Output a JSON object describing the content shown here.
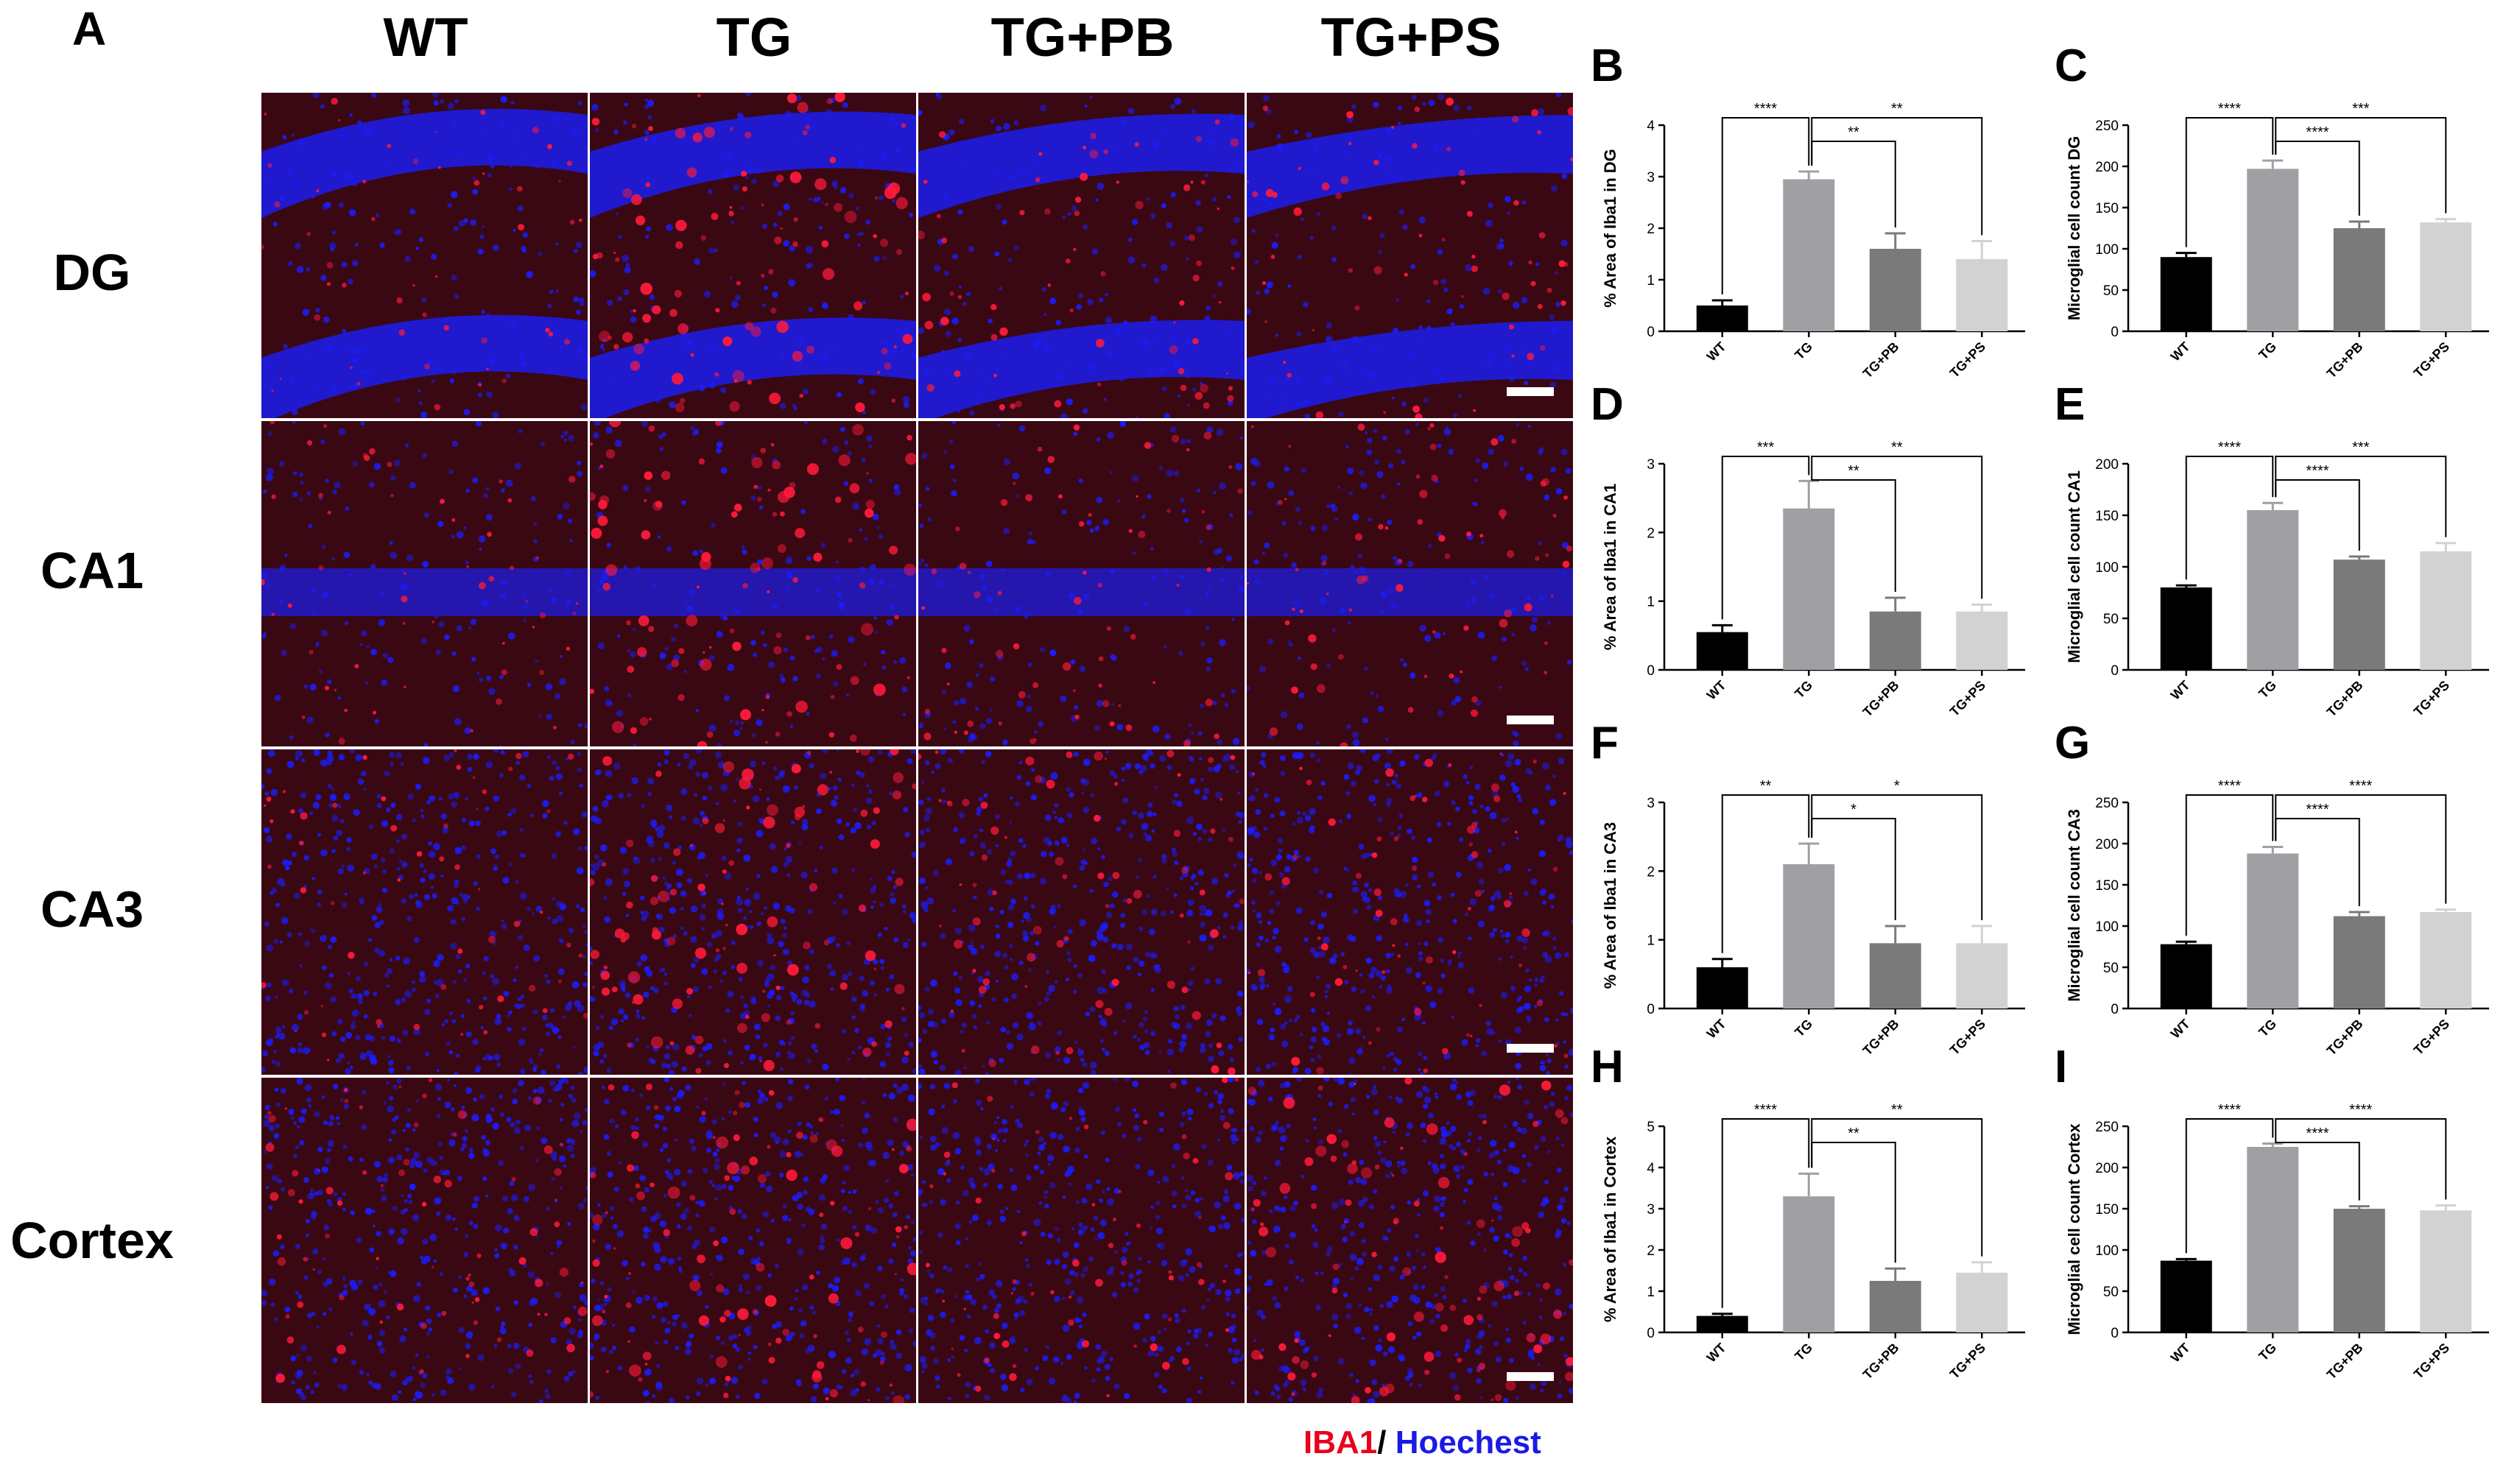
{
  "figure": {
    "panel_a_letter": "A",
    "columns": [
      "WT",
      "TG",
      "TG+PB",
      "TG+PS"
    ],
    "rows": [
      "DG",
      "CA1",
      "CA3",
      "Cortex"
    ],
    "legend": {
      "red_text": "IBA1",
      "separator": "/",
      "blue_text": "Hoechest",
      "red_color": "#e8001c",
      "blue_color": "#1a1ae6"
    },
    "stain_colors": {
      "nuclei": "#1c1cf0",
      "iba1": "#ff1a3a",
      "background": "#3a0812"
    }
  },
  "chart_data": [
    {
      "panel": "B",
      "type": "bar",
      "categories": [
        "WT",
        "TG",
        "TG+PB",
        "TG+PS"
      ],
      "values": [
        0.5,
        2.95,
        1.6,
        1.4
      ],
      "errors": [
        0.1,
        0.15,
        0.3,
        0.35
      ],
      "ylabel": "% Area of Iba1 in DG",
      "ylim": [
        0,
        4
      ],
      "yticks": [
        "0",
        "1",
        "2",
        "3",
        "4"
      ],
      "bar_colors": [
        "#000000",
        "#a0a0a4",
        "#7a7a7a",
        "#d2d2d2"
      ],
      "significance": [
        {
          "from": 0,
          "to": 1,
          "label": "****"
        },
        {
          "from": 1,
          "to": 2,
          "label": "**"
        },
        {
          "from": 1,
          "to": 3,
          "label": "**"
        }
      ]
    },
    {
      "panel": "C",
      "type": "bar",
      "categories": [
        "WT",
        "TG",
        "TG+PB",
        "TG+PS"
      ],
      "values": [
        90,
        197,
        125,
        132
      ],
      "errors": [
        5,
        10,
        8,
        4
      ],
      "ylabel": "Microglial cell count DG",
      "ylim": [
        0,
        250
      ],
      "yticks": [
        "0",
        "50",
        "100",
        "150",
        "200",
        "250"
      ],
      "bar_colors": [
        "#000000",
        "#a0a0a4",
        "#7a7a7a",
        "#d2d2d2"
      ],
      "significance": [
        {
          "from": 0,
          "to": 1,
          "label": "****"
        },
        {
          "from": 1,
          "to": 2,
          "label": "****"
        },
        {
          "from": 1,
          "to": 3,
          "label": "***"
        }
      ]
    },
    {
      "panel": "D",
      "type": "bar",
      "categories": [
        "WT",
        "TG",
        "TG+PB",
        "TG+PS"
      ],
      "values": [
        0.55,
        2.35,
        0.85,
        0.85
      ],
      "errors": [
        0.1,
        0.4,
        0.2,
        0.1
      ],
      "ylabel": "% Area of Iba1 in CA1",
      "ylim": [
        0,
        3
      ],
      "yticks": [
        "0",
        "1",
        "2",
        "3"
      ],
      "bar_colors": [
        "#000000",
        "#a0a0a4",
        "#7a7a7a",
        "#d2d2d2"
      ],
      "significance": [
        {
          "from": 0,
          "to": 1,
          "label": "***"
        },
        {
          "from": 1,
          "to": 2,
          "label": "**"
        },
        {
          "from": 1,
          "to": 3,
          "label": "**"
        }
      ]
    },
    {
      "panel": "E",
      "type": "bar",
      "categories": [
        "WT",
        "TG",
        "TG+PB",
        "TG+PS"
      ],
      "values": [
        80,
        155,
        107,
        115
      ],
      "errors": [
        2,
        7,
        3,
        8
      ],
      "ylabel": "Microglial cell count CA1",
      "ylim": [
        0,
        200
      ],
      "yticks": [
        "0",
        "50",
        "100",
        "150",
        "200"
      ],
      "bar_colors": [
        "#000000",
        "#a0a0a4",
        "#7a7a7a",
        "#d2d2d2"
      ],
      "significance": [
        {
          "from": 0,
          "to": 1,
          "label": "****"
        },
        {
          "from": 1,
          "to": 2,
          "label": "****"
        },
        {
          "from": 1,
          "to": 3,
          "label": "***"
        }
      ]
    },
    {
      "panel": "F",
      "type": "bar",
      "categories": [
        "WT",
        "TG",
        "TG+PB",
        "TG+PS"
      ],
      "values": [
        0.6,
        2.1,
        0.95,
        0.95
      ],
      "errors": [
        0.12,
        0.3,
        0.25,
        0.25
      ],
      "ylabel": "% Area of Iba1 in CA3",
      "ylim": [
        0,
        3
      ],
      "yticks": [
        "0",
        "1",
        "2",
        "3"
      ],
      "bar_colors": [
        "#000000",
        "#a0a0a4",
        "#7a7a7a",
        "#d2d2d2"
      ],
      "significance": [
        {
          "from": 0,
          "to": 1,
          "label": "**"
        },
        {
          "from": 1,
          "to": 2,
          "label": "*"
        },
        {
          "from": 1,
          "to": 3,
          "label": "*"
        }
      ]
    },
    {
      "panel": "G",
      "type": "bar",
      "categories": [
        "WT",
        "TG",
        "TG+PB",
        "TG+PS"
      ],
      "values": [
        78,
        188,
        112,
        117
      ],
      "errors": [
        3,
        8,
        5,
        3
      ],
      "ylabel": "Microglial cell count CA3",
      "ylim": [
        0,
        250
      ],
      "yticks": [
        "0",
        "50",
        "100",
        "150",
        "200",
        "250"
      ],
      "bar_colors": [
        "#000000",
        "#a0a0a4",
        "#7a7a7a",
        "#d2d2d2"
      ],
      "significance": [
        {
          "from": 0,
          "to": 1,
          "label": "****"
        },
        {
          "from": 1,
          "to": 2,
          "label": "****"
        },
        {
          "from": 1,
          "to": 3,
          "label": "****"
        }
      ]
    },
    {
      "panel": "H",
      "type": "bar",
      "categories": [
        "WT",
        "TG",
        "TG+PB",
        "TG+PS"
      ],
      "values": [
        0.4,
        3.3,
        1.25,
        1.45
      ],
      "errors": [
        0.05,
        0.55,
        0.3,
        0.25
      ],
      "ylabel": "% Area of Iba1 in Cortex",
      "ylim": [
        0,
        5
      ],
      "yticks": [
        "0",
        "1",
        "2",
        "3",
        "4",
        "5"
      ],
      "bar_colors": [
        "#000000",
        "#a0a0a4",
        "#7a7a7a",
        "#d2d2d2"
      ],
      "significance": [
        {
          "from": 0,
          "to": 1,
          "label": "****"
        },
        {
          "from": 1,
          "to": 2,
          "label": "**"
        },
        {
          "from": 1,
          "to": 3,
          "label": "**"
        }
      ]
    },
    {
      "panel": "I",
      "type": "bar",
      "categories": [
        "WT",
        "TG",
        "TG+PB",
        "TG+PS"
      ],
      "values": [
        87,
        225,
        150,
        148
      ],
      "errors": [
        2,
        4,
        3,
        6
      ],
      "ylabel": "Microglial cell count Cortex",
      "ylim": [
        0,
        250
      ],
      "yticks": [
        "0",
        "50",
        "100",
        "150",
        "200",
        "250"
      ],
      "bar_colors": [
        "#000000",
        "#a0a0a4",
        "#7a7a7a",
        "#d2d2d2"
      ],
      "significance": [
        {
          "from": 0,
          "to": 1,
          "label": "****"
        },
        {
          "from": 1,
          "to": 2,
          "label": "****"
        },
        {
          "from": 1,
          "to": 3,
          "label": "****"
        }
      ]
    }
  ]
}
